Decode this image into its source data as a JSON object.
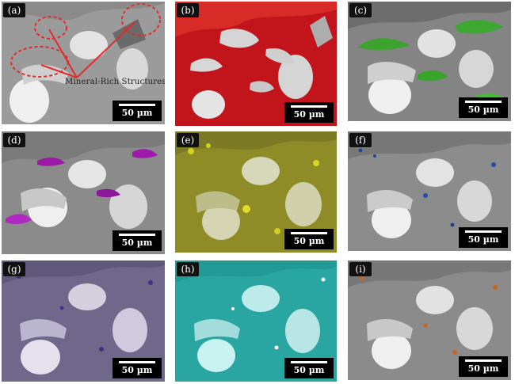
{
  "figure": {
    "panels": [
      {
        "id": "a",
        "label": "(a)",
        "scale": "50 µm",
        "annotation": "Mineral-Rich Structures",
        "map_color": "#e0401f"
      },
      {
        "id": "b",
        "label": "(b)",
        "scale": "50 µm",
        "map_color": "#d21a1a"
      },
      {
        "id": "c",
        "label": "(c)",
        "scale": "50 µm",
        "map_color": "#2f9a20"
      },
      {
        "id": "d",
        "label": "(d)",
        "scale": "50 µm",
        "map_color": "#a31fb4"
      },
      {
        "id": "e",
        "label": "(e)",
        "scale": "50 µm",
        "map_color": "#c3bf1e"
      },
      {
        "id": "f",
        "label": "(f)",
        "scale": "50 µm",
        "map_color": "#2a3f9a"
      },
      {
        "id": "g",
        "label": "(g)",
        "scale": "50 µm",
        "map_color": "#47307d"
      },
      {
        "id": "h",
        "label": "(h)",
        "scale": "50 µm",
        "map_color": "#22b7b3"
      },
      {
        "id": "i",
        "label": "(i)",
        "scale": "50 µm",
        "map_color": "#c8651d"
      }
    ]
  }
}
